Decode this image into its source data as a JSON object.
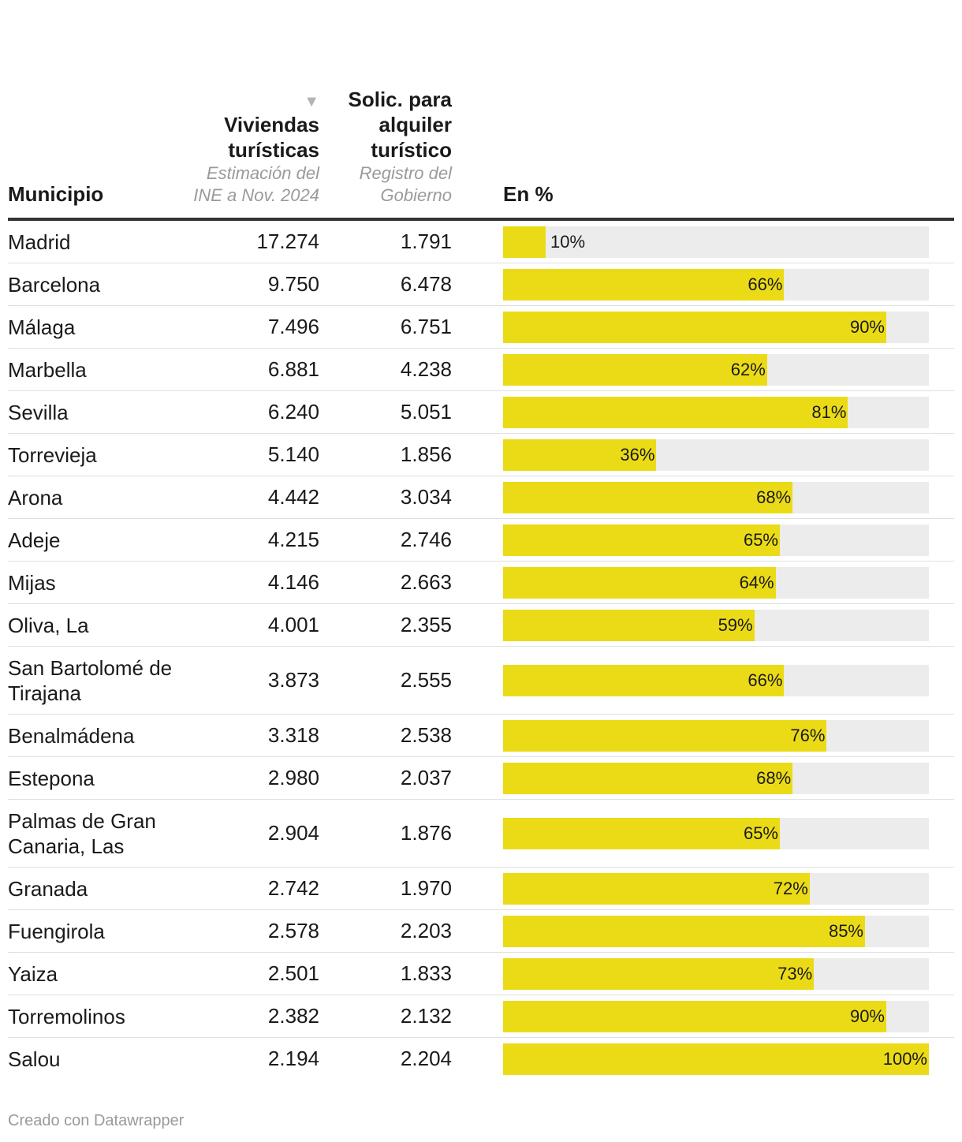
{
  "chart_data": {
    "type": "table",
    "columns": {
      "municipio": "Municipio",
      "viviendas": {
        "title": "Viviendas turísticas",
        "subtitle": "Estimación del INE a Nov. 2024"
      },
      "solicitudes": {
        "title": "Solic. para alquiler turístico",
        "subtitle": "Registro del Gobierno"
      },
      "pct": "En %"
    },
    "rows": [
      {
        "municipio": "Madrid",
        "viviendas": "17.274",
        "solicitudes": "1.791",
        "pct": 10,
        "pct_label": "10%"
      },
      {
        "municipio": "Barcelona",
        "viviendas": "9.750",
        "solicitudes": "6.478",
        "pct": 66,
        "pct_label": "66%"
      },
      {
        "municipio": "Málaga",
        "viviendas": "7.496",
        "solicitudes": "6.751",
        "pct": 90,
        "pct_label": "90%"
      },
      {
        "municipio": "Marbella",
        "viviendas": "6.881",
        "solicitudes": "4.238",
        "pct": 62,
        "pct_label": "62%"
      },
      {
        "municipio": "Sevilla",
        "viviendas": "6.240",
        "solicitudes": "5.051",
        "pct": 81,
        "pct_label": "81%"
      },
      {
        "municipio": "Torrevieja",
        "viviendas": "5.140",
        "solicitudes": "1.856",
        "pct": 36,
        "pct_label": "36%"
      },
      {
        "municipio": "Arona",
        "viviendas": "4.442",
        "solicitudes": "3.034",
        "pct": 68,
        "pct_label": "68%"
      },
      {
        "municipio": "Adeje",
        "viviendas": "4.215",
        "solicitudes": "2.746",
        "pct": 65,
        "pct_label": "65%"
      },
      {
        "municipio": "Mijas",
        "viviendas": "4.146",
        "solicitudes": "2.663",
        "pct": 64,
        "pct_label": "64%"
      },
      {
        "municipio": "Oliva, La",
        "viviendas": "4.001",
        "solicitudes": "2.355",
        "pct": 59,
        "pct_label": "59%"
      },
      {
        "municipio": "San Bartolomé de Tirajana",
        "viviendas": "3.873",
        "solicitudes": "2.555",
        "pct": 66,
        "pct_label": "66%",
        "tall": true
      },
      {
        "municipio": "Benalmádena",
        "viviendas": "3.318",
        "solicitudes": "2.538",
        "pct": 76,
        "pct_label": "76%"
      },
      {
        "municipio": "Estepona",
        "viviendas": "2.980",
        "solicitudes": "2.037",
        "pct": 68,
        "pct_label": "68%"
      },
      {
        "municipio": "Palmas de Gran Canaria, Las",
        "viviendas": "2.904",
        "solicitudes": "1.876",
        "pct": 65,
        "pct_label": "65%",
        "tall": true
      },
      {
        "municipio": "Granada",
        "viviendas": "2.742",
        "solicitudes": "1.970",
        "pct": 72,
        "pct_label": "72%"
      },
      {
        "municipio": "Fuengirola",
        "viviendas": "2.578",
        "solicitudes": "2.203",
        "pct": 85,
        "pct_label": "85%"
      },
      {
        "municipio": "Yaiza",
        "viviendas": "2.501",
        "solicitudes": "1.833",
        "pct": 73,
        "pct_label": "73%"
      },
      {
        "municipio": "Torremolinos",
        "viviendas": "2.382",
        "solicitudes": "2.132",
        "pct": 90,
        "pct_label": "90%"
      },
      {
        "municipio": "Salou",
        "viviendas": "2.194",
        "solicitudes": "2.204",
        "pct": 100,
        "pct_label": "100%"
      }
    ],
    "xlim": [
      0,
      100
    ],
    "bar_color": "#ebdb17",
    "track_color": "#ececec",
    "sort_indicator": "▼"
  },
  "footer": "Creado con Datawrapper"
}
